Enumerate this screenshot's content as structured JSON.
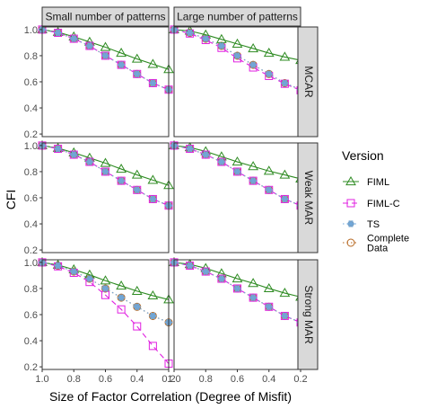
{
  "chart_data": {
    "type": "line",
    "xlabel": "Size of Factor Correlation (Degree of Misfit)",
    "ylabel": "CFI",
    "x_reversed": true,
    "xlim": [
      1.0,
      0.2
    ],
    "ylim": [
      0.18,
      1.02
    ],
    "x_ticks": [
      "1.0",
      "0.8",
      "0.6",
      "0.4",
      "0.2"
    ],
    "y_ticks": [
      "0.2",
      "0.4",
      "0.6",
      "0.8",
      "1.0"
    ],
    "x": [
      1.0,
      0.9,
      0.8,
      0.7,
      0.6,
      0.5,
      0.4,
      0.3,
      0.2
    ],
    "grid": false,
    "legend": {
      "title": "Version",
      "position": "right",
      "entries": [
        {
          "label": "FIML",
          "color": "#2e8b22",
          "shape": "triangle",
          "dash": "solid"
        },
        {
          "label": "FIML-C",
          "color": "#e020e0",
          "shape": "square",
          "dash": "dashed"
        },
        {
          "label": "TS",
          "color": "#6fa8dc",
          "shape": "asterisk",
          "dash": "dotted"
        },
        {
          "label": "Complete\nData",
          "color": "#b5651d",
          "shape": "circle",
          "dash": "dotted"
        }
      ]
    },
    "col_facets": [
      "Small number of patterns",
      "Large number of patterns"
    ],
    "row_facets": [
      "MCAR",
      "Weak MAR",
      "Strong MAR"
    ],
    "panels": [
      {
        "col": 0,
        "row": 0,
        "series": [
          {
            "name": "FIML",
            "values": [
              1.0,
              0.98,
              0.945,
              0.905,
              0.865,
              0.82,
              0.775,
              0.735,
              0.695
            ]
          },
          {
            "name": "FIML-C",
            "values": [
              1.0,
              0.975,
              0.93,
              0.875,
              0.8,
              0.73,
              0.66,
              0.59,
              0.54
            ]
          },
          {
            "name": "TS",
            "values": [
              1.0,
              0.975,
              0.93,
              0.875,
              0.8,
              0.73,
              0.66,
              0.59,
              0.54
            ]
          },
          {
            "name": "Complete\nData",
            "values": [
              1.0,
              0.975,
              0.93,
              0.875,
              0.8,
              0.73,
              0.66,
              0.59,
              0.54
            ]
          }
        ]
      },
      {
        "col": 1,
        "row": 0,
        "series": [
          {
            "name": "FIML",
            "values": [
              1.0,
              0.99,
              0.96,
              0.925,
              0.89,
              0.855,
              0.82,
              0.79,
              0.765
            ]
          },
          {
            "name": "FIML-C",
            "values": [
              1.0,
              0.97,
              0.92,
              0.86,
              0.78,
              0.71,
              0.645,
              0.585,
              0.535
            ]
          },
          {
            "name": "TS",
            "values": [
              1.0,
              0.975,
              0.93,
              0.875,
              0.8,
              0.73,
              0.66,
              0.59,
              0.54
            ]
          },
          {
            "name": "Complete\nData",
            "values": [
              1.0,
              0.975,
              0.93,
              0.875,
              0.8,
              0.73,
              0.66,
              0.59,
              0.54
            ]
          }
        ]
      },
      {
        "col": 0,
        "row": 1,
        "series": [
          {
            "name": "FIML",
            "values": [
              1.0,
              0.98,
              0.945,
              0.905,
              0.865,
              0.82,
              0.775,
              0.735,
              0.695
            ]
          },
          {
            "name": "FIML-C",
            "values": [
              1.0,
              0.975,
              0.93,
              0.875,
              0.8,
              0.73,
              0.66,
              0.59,
              0.54
            ]
          },
          {
            "name": "TS",
            "values": [
              1.0,
              0.975,
              0.93,
              0.875,
              0.8,
              0.73,
              0.66,
              0.59,
              0.54
            ]
          },
          {
            "name": "Complete\nData",
            "values": [
              1.0,
              0.975,
              0.93,
              0.875,
              0.8,
              0.73,
              0.66,
              0.59,
              0.54
            ]
          }
        ]
      },
      {
        "col": 1,
        "row": 1,
        "series": [
          {
            "name": "FIML",
            "values": [
              1.0,
              0.985,
              0.955,
              0.915,
              0.875,
              0.84,
              0.805,
              0.775,
              0.745
            ]
          },
          {
            "name": "FIML-C",
            "values": [
              1.0,
              0.975,
              0.93,
              0.875,
              0.8,
              0.73,
              0.66,
              0.59,
              0.54
            ]
          },
          {
            "name": "TS",
            "values": [
              1.0,
              0.975,
              0.93,
              0.875,
              0.8,
              0.73,
              0.66,
              0.59,
              0.54
            ]
          },
          {
            "name": "Complete\nData",
            "values": [
              1.0,
              0.975,
              0.93,
              0.875,
              0.8,
              0.73,
              0.66,
              0.59,
              0.54
            ]
          }
        ]
      },
      {
        "col": 0,
        "row": 2,
        "series": [
          {
            "name": "FIML",
            "values": [
              1.0,
              0.98,
              0.945,
              0.905,
              0.86,
              0.82,
              0.78,
              0.745,
              0.715
            ]
          },
          {
            "name": "FIML-C",
            "values": [
              1.0,
              0.97,
              0.92,
              0.85,
              0.75,
              0.64,
              0.51,
              0.36,
              0.225
            ]
          },
          {
            "name": "TS",
            "values": [
              1.0,
              0.975,
              0.93,
              0.875,
              0.8,
              0.73,
              0.66,
              0.59,
              0.54
            ]
          },
          {
            "name": "Complete\nData",
            "values": [
              1.0,
              0.975,
              0.93,
              0.875,
              0.8,
              0.73,
              0.66,
              0.59,
              0.54
            ]
          }
        ]
      },
      {
        "col": 1,
        "row": 2,
        "series": [
          {
            "name": "FIML",
            "values": [
              1.0,
              0.985,
              0.955,
              0.915,
              0.875,
              0.84,
              0.8,
              0.765,
              0.735
            ]
          },
          {
            "name": "FIML-C",
            "values": [
              1.0,
              0.975,
              0.93,
              0.875,
              0.8,
              0.73,
              0.66,
              0.59,
              0.54
            ]
          },
          {
            "name": "TS",
            "values": [
              1.0,
              0.975,
              0.93,
              0.875,
              0.8,
              0.73,
              0.66,
              0.59,
              0.54
            ]
          },
          {
            "name": "Complete\nData",
            "values": [
              1.0,
              0.975,
              0.93,
              0.875,
              0.8,
              0.73,
              0.66,
              0.59,
              0.54
            ]
          }
        ]
      }
    ]
  }
}
